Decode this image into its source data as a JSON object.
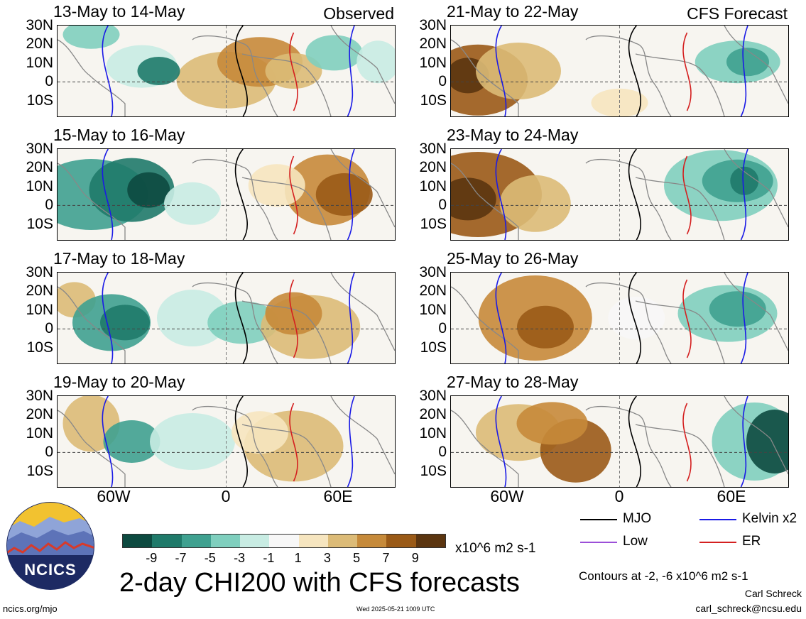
{
  "panels": [
    {
      "title": "13-May to 14-May",
      "tag": "Observed"
    },
    {
      "title": "21-May to 22-May",
      "tag": "CFS Forecast"
    },
    {
      "title": "15-May to 16-May",
      "tag": ""
    },
    {
      "title": "23-May to 24-May",
      "tag": ""
    },
    {
      "title": "17-May to 18-May",
      "tag": ""
    },
    {
      "title": "25-May to 26-May",
      "tag": ""
    },
    {
      "title": "19-May to 20-May",
      "tag": ""
    },
    {
      "title": "27-May to 28-May",
      "tag": ""
    }
  ],
  "lat_labels": [
    "30N",
    "20N",
    "10N",
    "0",
    "10S"
  ],
  "lon_labels": [
    "60W",
    "0",
    "60E"
  ],
  "colorbar": {
    "colors": [
      "#0d4a40",
      "#1f7a6a",
      "#3fa190",
      "#7fcfbe",
      "#c8ece3",
      "#f7f7f7",
      "#f6e5bf",
      "#dcbb77",
      "#c68a3a",
      "#9a5a17",
      "#5b3510"
    ],
    "labels": [
      "-9",
      "-7",
      "-5",
      "-3",
      "-1",
      "1",
      "3",
      "5",
      "7",
      "9"
    ],
    "units": "x10^6 m2 s-1"
  },
  "legend": {
    "mjo": "MJO",
    "kelvin": "Kelvin x2",
    "low": "Low",
    "er": "ER",
    "colors": {
      "mjo": "#000000",
      "kelvin": "#1a1ae6",
      "low": "#9b4fd8",
      "er": "#d42020"
    }
  },
  "title": "2-day CHI200 with CFS forecasts",
  "contour_note": "Contours at -2, -6 x10^6 m2 s-1",
  "author": "Carl Schreck",
  "email": "carl_schreck@ncsu.edu",
  "url": "ncics.org/mjo",
  "timestamp": "Wed 2025-05-21 1009 UTC",
  "logo_text": "NCICS"
}
